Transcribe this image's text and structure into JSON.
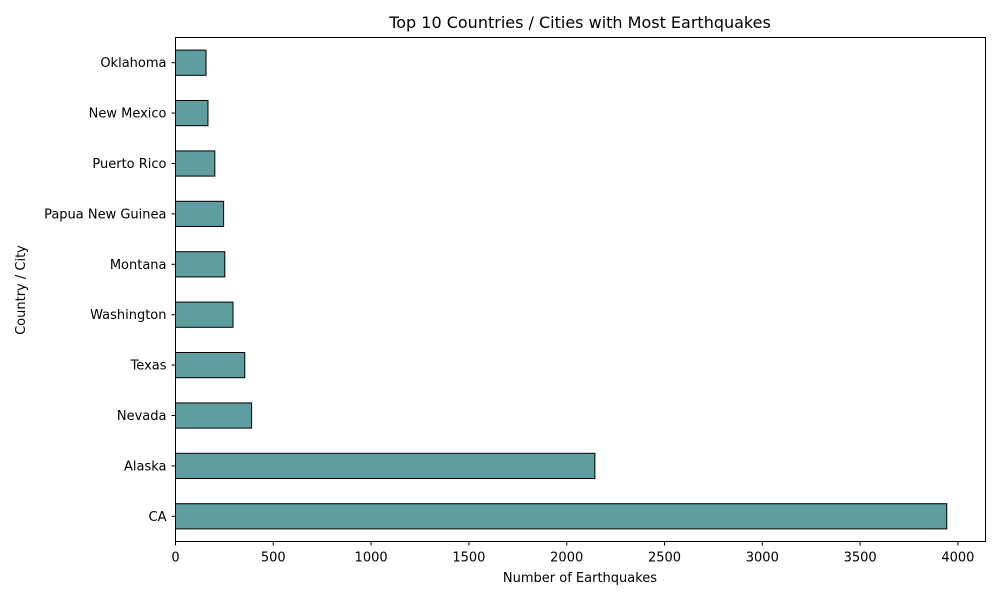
{
  "chart_data": {
    "type": "bar",
    "orientation": "horizontal",
    "title": "Top 10 Countries / Cities with Most Earthquakes",
    "xlabel": "Number of Earthquakes",
    "ylabel": "Country / City",
    "categories": [
      "CA",
      "Alaska",
      "Nevada",
      "Texas",
      "Washington",
      "Montana",
      "Papua New Guinea",
      "Puerto Rico",
      "New Mexico",
      "Oklahoma"
    ],
    "values": [
      3943,
      2144,
      389,
      354,
      294,
      252,
      246,
      201,
      166,
      156
    ],
    "xlim": [
      0,
      4141
    ],
    "xticks": [
      0,
      500,
      1000,
      1500,
      2000,
      2500,
      3000,
      3500,
      4000
    ],
    "grid": false,
    "legend": "none",
    "bar_color": "#5f9ea0",
    "edge_color": "#000000"
  }
}
